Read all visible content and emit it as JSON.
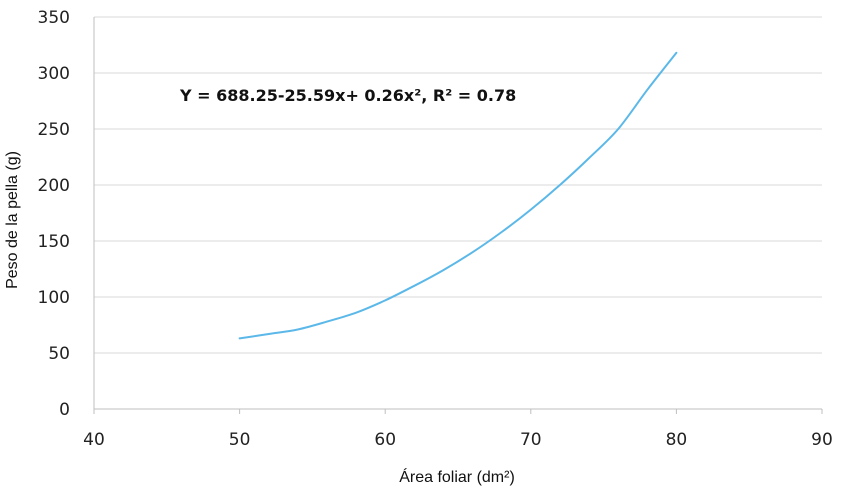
{
  "chart_data": {
    "type": "line",
    "title": "",
    "xlabel": "Área foliar (dm²)",
    "ylabel": "Peso de la pella (g)",
    "xlim": [
      40,
      90
    ],
    "ylim": [
      0,
      350
    ],
    "xticks": [
      40,
      50,
      60,
      70,
      80,
      90
    ],
    "yticks": [
      0,
      50,
      100,
      150,
      200,
      250,
      300,
      350
    ],
    "grid": "horizontal",
    "annotation": "Y = 688.25-25.59x+ 0.26x², R² = 0.78",
    "series": [
      {
        "color": "#5bb8e8",
        "x": [
          50,
          52,
          54,
          56,
          58,
          60,
          62,
          64,
          66,
          68,
          70,
          72,
          74,
          76,
          78,
          80
        ],
        "y": [
          63,
          67,
          71,
          78,
          86,
          97,
          110,
          124,
          140,
          158,
          178,
          200,
          224,
          250,
          285,
          318
        ]
      }
    ]
  },
  "colors": {
    "line": "#5bb8e8",
    "grid": "#d9d9d9",
    "axis": "#bfbfbf"
  }
}
